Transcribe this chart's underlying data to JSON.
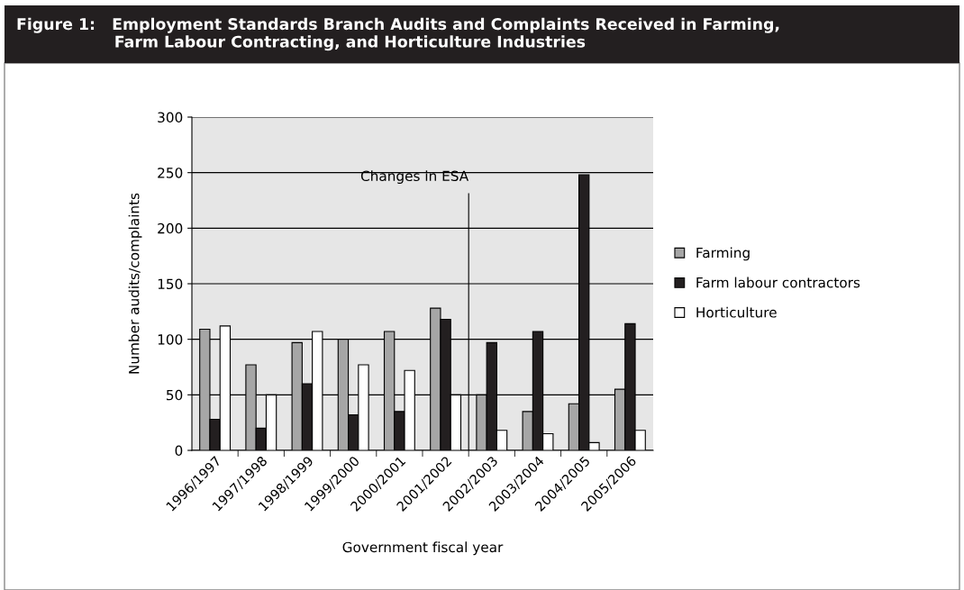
{
  "chart_data": {
    "type": "bar",
    "title": "Figure 1:   Employment Standards Branch Audits and Complaints Received in Farming,\n                  Farm Labour Contracting, and Horticulture Industries",
    "categories": [
      "1996/1997",
      "1997/1998",
      "1998/1999",
      "1999/2000",
      "2000/2001",
      "2001/2002",
      "2002/2003",
      "2003/2004",
      "2004/2005",
      "2005/2006"
    ],
    "series": [
      {
        "name": "Farming",
        "color": "#a6a6a6",
        "values": [
          109,
          77,
          97,
          100,
          107,
          128,
          50,
          35,
          42,
          55
        ]
      },
      {
        "name": "Farm labour contractors",
        "color": "#231f20",
        "values": [
          28,
          20,
          60,
          32,
          35,
          118,
          97,
          107,
          248,
          114
        ]
      },
      {
        "name": "Horticulture",
        "color": "#ffffff",
        "values": [
          112,
          50,
          107,
          77,
          72,
          50,
          18,
          15,
          7,
          18
        ]
      }
    ],
    "xlabel": "Government fiscal year",
    "ylabel": "Number audits/complaints",
    "ylim": [
      0,
      300
    ],
    "yticks": [
      0,
      50,
      100,
      150,
      200,
      250,
      300
    ],
    "grid": "y",
    "legend": "right",
    "annotations": [
      "Changes in ESA"
    ]
  }
}
